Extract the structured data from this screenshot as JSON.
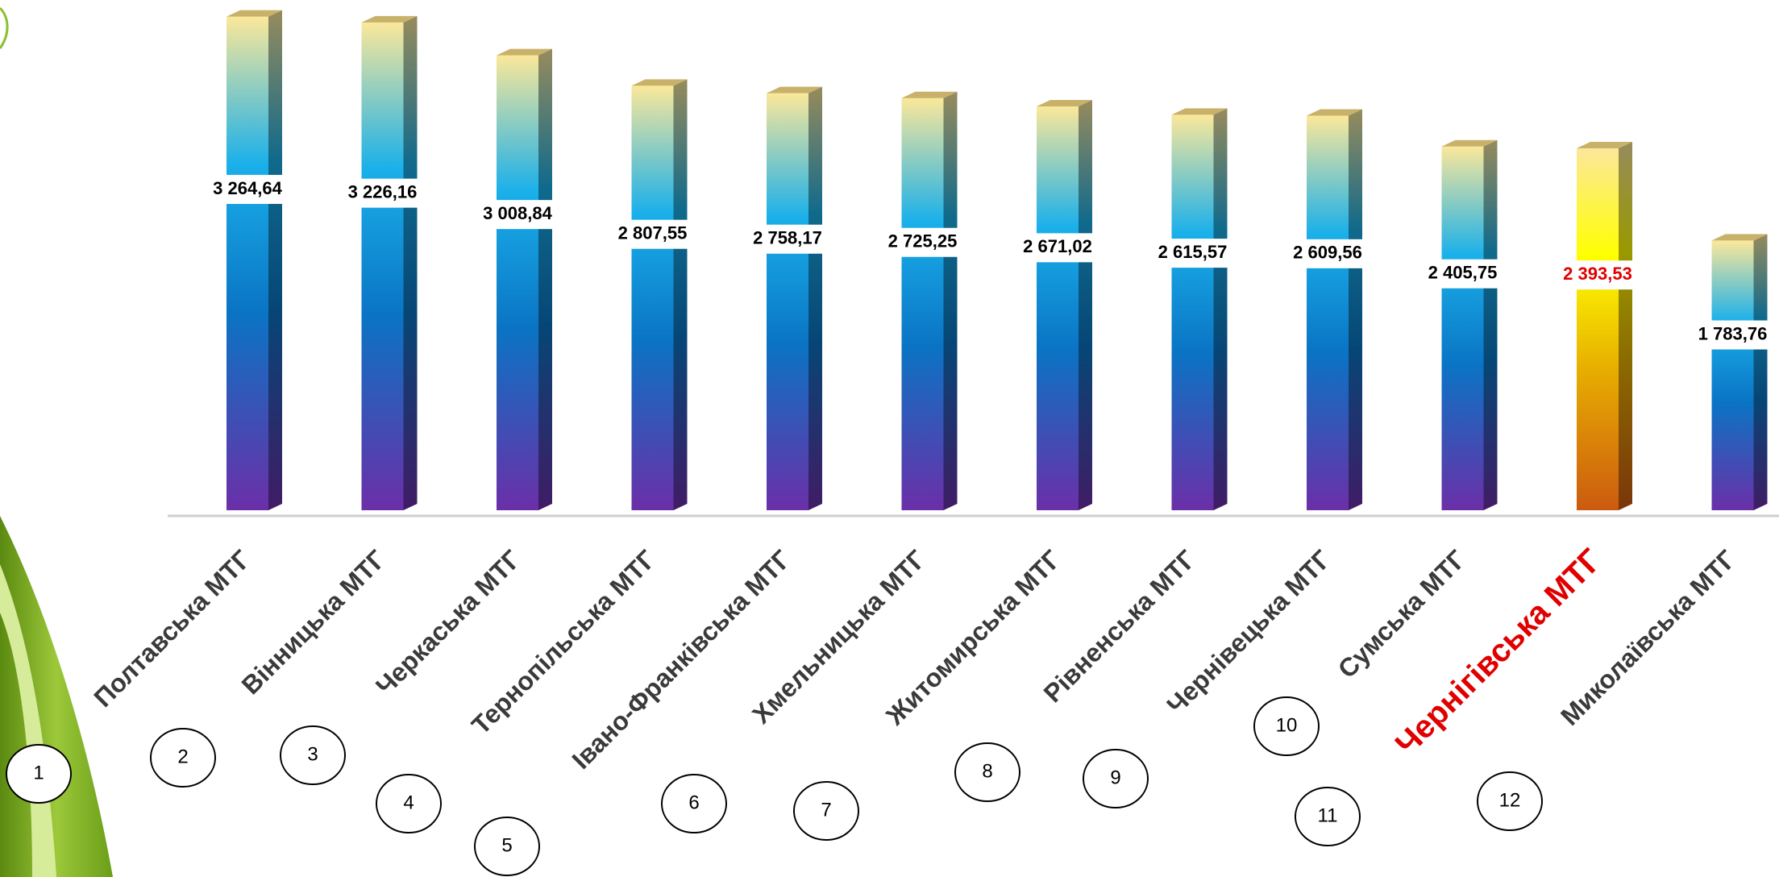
{
  "chart_data": {
    "type": "bar",
    "categories": [
      "Полтавська МТГ",
      "Вінницька МТГ",
      "Черкаська МТГ",
      "Тернопільська МТГ",
      "Івано-Франківська МТГ",
      "Хмельницька МТГ",
      "Житомирська МТГ",
      "Рівненська МТГ",
      "Чернівецька МТГ",
      "Сумська МТГ",
      "Чернігівська МТГ",
      "Миколаївська МТГ"
    ],
    "values": [
      3264.64,
      3226.16,
      3008.84,
      2807.55,
      2758.17,
      2725.25,
      2671.02,
      2615.57,
      2609.56,
      2405.75,
      2393.53,
      1783.76
    ],
    "value_labels": [
      "3 264,64",
      "3 226,16",
      "3 008,84",
      "2 807,55",
      "2 758,17",
      "2 725,25",
      "2 671,02",
      "2 615,57",
      "2 609,56",
      "2 405,75",
      "2 393,53",
      "1 783,76"
    ],
    "ranks": [
      1,
      2,
      3,
      4,
      5,
      6,
      7,
      8,
      9,
      10,
      11,
      12
    ],
    "colors": [
      "#0a74c4",
      "#0a74c4",
      "#0a74c4",
      "#0a74c4",
      "#0a74c4",
      "#0a74c4",
      "#0a74c4",
      "#0a74c4",
      "#0a74c4",
      "#0a74c4",
      "#e8b000",
      "#0a74c4"
    ],
    "label_colors": [
      "#000000",
      "#000000",
      "#000000",
      "#000000",
      "#000000",
      "#000000",
      "#000000",
      "#000000",
      "#000000",
      "#000000",
      "#e00000",
      "#000000"
    ],
    "ylim": [
      0,
      3300
    ]
  }
}
